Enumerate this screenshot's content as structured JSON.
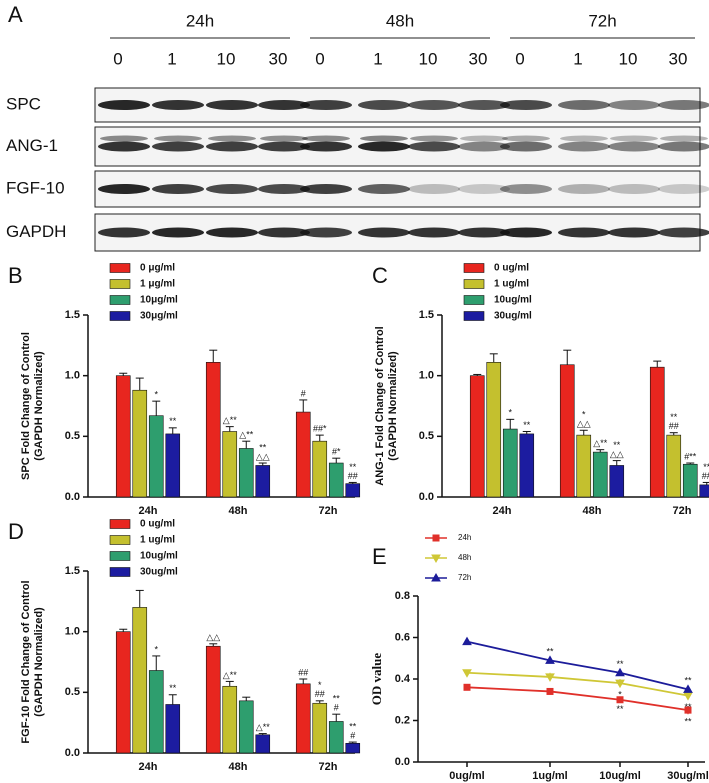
{
  "blot": {
    "panel_label": "A",
    "times": [
      "24h",
      "48h",
      "72h"
    ],
    "doses": [
      "0",
      "1",
      "10",
      "30"
    ],
    "rows": [
      "SPC",
      "ANG-1",
      "FGF-10",
      "GAPDH"
    ]
  },
  "chart_data": [
    {
      "type": "bar",
      "panel_label": "B",
      "ylabel": [
        "SPC Fold Change of Control",
        "(GAPDH Normalized)"
      ],
      "categories": [
        "24h",
        "48h",
        "72h"
      ],
      "ylim": [
        0,
        1.5
      ],
      "yticks": [
        {
          "value": 0,
          "label": "0.0"
        },
        {
          "value": 0.5,
          "label": "0.5"
        },
        {
          "value": 1,
          "label": "1.0"
        },
        {
          "value": 1.5,
          "label": "1.5"
        }
      ],
      "series": [
        {
          "name": "0  μg/ml",
          "color": "#e8261f",
          "values": [
            1.0,
            1.11,
            0.7
          ],
          "errors": [
            0.02,
            0.1,
            0.1
          ],
          "marks": [
            null,
            null,
            [
              "#"
            ]
          ]
        },
        {
          "name": "1  μg/ml",
          "color": "#c4c02e",
          "values": [
            0.88,
            0.54,
            0.46
          ],
          "errors": [
            0.1,
            0.04,
            0.05
          ],
          "marks": [
            null,
            [
              "△**"
            ],
            [
              "##*"
            ]
          ]
        },
        {
          "name": "10μg/ml",
          "color": "#2e9e6e",
          "values": [
            0.67,
            0.4,
            0.28
          ],
          "errors": [
            0.12,
            0.06,
            0.04
          ],
          "marks": [
            [
              "*"
            ],
            [
              "△**"
            ],
            [
              "#*"
            ]
          ]
        },
        {
          "name": "30μg/ml",
          "color": "#1c1ca0",
          "values": [
            0.52,
            0.26,
            0.11
          ],
          "errors": [
            0.05,
            0.02,
            0.01
          ],
          "marks": [
            [
              "**"
            ],
            [
              "**",
              "△△"
            ],
            [
              "**",
              "##"
            ]
          ]
        }
      ]
    },
    {
      "type": "bar",
      "panel_label": "C",
      "ylabel": [
        "ANG-1 Fold Change of Control",
        "(GAPDH Normalized)"
      ],
      "categories": [
        "24h",
        "48h",
        "72h"
      ],
      "ylim": [
        0,
        1.5
      ],
      "yticks": [
        {
          "value": 0,
          "label": "0.0"
        },
        {
          "value": 0.5,
          "label": "0.5"
        },
        {
          "value": 1,
          "label": "1.0"
        },
        {
          "value": 1.5,
          "label": "1.5"
        }
      ],
      "series": [
        {
          "name": "0  ug/ml",
          "color": "#e8261f",
          "values": [
            1.0,
            1.09,
            1.07
          ],
          "errors": [
            0.01,
            0.12,
            0.05
          ],
          "marks": [
            null,
            null,
            null
          ]
        },
        {
          "name": "1  ug/ml",
          "color": "#c4c02e",
          "values": [
            1.11,
            0.51,
            0.51
          ],
          "errors": [
            0.07,
            0.04,
            0.02
          ],
          "marks": [
            null,
            [
              "*",
              "△△"
            ],
            [
              "**",
              "##"
            ]
          ]
        },
        {
          "name": "10ug/ml",
          "color": "#2e9e6e",
          "values": [
            0.56,
            0.37,
            0.27
          ],
          "errors": [
            0.08,
            0.02,
            0.01
          ],
          "marks": [
            [
              "*"
            ],
            [
              "△**"
            ],
            [
              "#**"
            ]
          ]
        },
        {
          "name": "30ug/ml",
          "color": "#1c1ca0",
          "values": [
            0.52,
            0.26,
            0.1
          ],
          "errors": [
            0.02,
            0.04,
            0.02
          ],
          "marks": [
            [
              "**"
            ],
            [
              "**",
              "△△"
            ],
            [
              "**",
              "##"
            ]
          ]
        }
      ]
    },
    {
      "type": "bar",
      "panel_label": "D",
      "ylabel": [
        "FGF-10 Fold Change of Control",
        "(GAPDH Normalized)"
      ],
      "categories": [
        "24h",
        "48h",
        "72h"
      ],
      "ylim": [
        0,
        1.5
      ],
      "yticks": [
        {
          "value": 0,
          "label": "0.0"
        },
        {
          "value": 0.5,
          "label": "0.5"
        },
        {
          "value": 1,
          "label": "1.0"
        },
        {
          "value": 1.5,
          "label": "1.5"
        }
      ],
      "series": [
        {
          "name": "0  ug/ml",
          "color": "#e8261f",
          "values": [
            1.0,
            0.88,
            0.57
          ],
          "errors": [
            0.02,
            0.02,
            0.04
          ],
          "marks": [
            null,
            [
              "△△"
            ],
            [
              "##"
            ]
          ]
        },
        {
          "name": "1  ug/ml",
          "color": "#c4c02e",
          "values": [
            1.2,
            0.55,
            0.41
          ],
          "errors": [
            0.14,
            0.04,
            0.02
          ],
          "marks": [
            null,
            [
              "△**"
            ],
            [
              "*",
              "##"
            ]
          ]
        },
        {
          "name": "10ug/ml",
          "color": "#2e9e6e",
          "values": [
            0.68,
            0.43,
            0.26
          ],
          "errors": [
            0.12,
            0.03,
            0.06
          ],
          "marks": [
            [
              "*"
            ],
            null,
            [
              "**",
              "#"
            ]
          ]
        },
        {
          "name": "30ug/ml",
          "color": "#1c1ca0",
          "values": [
            0.4,
            0.15,
            0.08
          ],
          "errors": [
            0.08,
            0.01,
            0.01
          ],
          "marks": [
            [
              "**"
            ],
            [
              "△**"
            ],
            [
              "**",
              "#"
            ]
          ]
        }
      ]
    },
    {
      "type": "line",
      "panel_label": "E",
      "ylabel": [
        "OD value"
      ],
      "categories": [
        "0ug/ml",
        "1ug/ml",
        "10ug/ml",
        "30ug/ml"
      ],
      "ylim": [
        0,
        0.8
      ],
      "yticks": [
        {
          "value": 0,
          "label": "0.0"
        },
        {
          "value": 0.2,
          "label": "0.2"
        },
        {
          "value": 0.4,
          "label": "0.4"
        },
        {
          "value": 0.6,
          "label": "0.6"
        },
        {
          "value": 0.8,
          "label": "0.8"
        }
      ],
      "series": [
        {
          "name": "24h",
          "color": "#e0302a",
          "marker": "square",
          "values": [
            0.36,
            0.34,
            0.3,
            0.25
          ],
          "errors": [
            0.01,
            0.015,
            0.01,
            0.02
          ],
          "marks": [
            null,
            null,
            [
              "**"
            ],
            [
              "**"
            ]
          ]
        },
        {
          "name": "48h",
          "color": "#cfc736",
          "marker": "triangle-down",
          "values": [
            0.43,
            0.41,
            0.38,
            0.32
          ],
          "errors": [
            0.01,
            0.02,
            0.02,
            0.02
          ],
          "marks": [
            null,
            null,
            [
              "*"
            ],
            [
              "**"
            ]
          ]
        },
        {
          "name": "72h",
          "color": "#1c1c9a",
          "marker": "triangle-up",
          "values": [
            0.58,
            0.49,
            0.43,
            0.35
          ],
          "errors": [
            0.01,
            0.01,
            0.01,
            0.01
          ],
          "marks": [
            null,
            [
              "**"
            ],
            [
              "**"
            ],
            [
              "**"
            ]
          ]
        }
      ]
    }
  ]
}
